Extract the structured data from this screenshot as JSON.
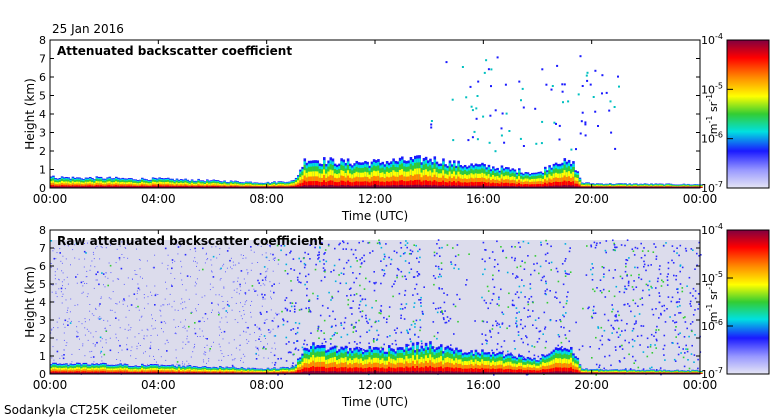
{
  "date": "25 Jan 2016",
  "footer": "Sodankyla CT25K ceilometer",
  "chart_data": [
    {
      "type": "heatmap",
      "title": "Attenuated backscatter coefficient",
      "xlabel": "Time (UTC)",
      "ylabel": "Height (km)",
      "xlim": [
        0,
        24
      ],
      "ylim": [
        0,
        8
      ],
      "xticks": [
        0,
        4,
        8,
        12,
        16,
        20,
        24
      ],
      "xtick_labels": [
        "00:00",
        "04:00",
        "08:00",
        "12:00",
        "16:00",
        "20:00",
        "00:00"
      ],
      "yticks": [
        0,
        1,
        2,
        3,
        4,
        5,
        6,
        7,
        8
      ],
      "ytick_labels": [
        "0",
        "1",
        "2",
        "3",
        "4",
        "5",
        "6",
        "7",
        "8"
      ],
      "layer_top_km": [
        [
          0,
          0.6
        ],
        [
          1,
          0.55
        ],
        [
          2,
          0.55
        ],
        [
          3,
          0.5
        ],
        [
          4,
          0.5
        ],
        [
          5,
          0.45
        ],
        [
          6,
          0.4
        ],
        [
          7,
          0.35
        ],
        [
          8,
          0.3
        ],
        [
          9,
          0.4
        ],
        [
          9.4,
          1.6
        ],
        [
          10,
          1.5
        ],
        [
          11,
          1.4
        ],
        [
          12,
          1.4
        ],
        [
          13,
          1.5
        ],
        [
          14,
          1.6
        ],
        [
          15,
          1.3
        ],
        [
          16,
          1.2
        ],
        [
          17,
          1.0
        ],
        [
          18,
          0.8
        ],
        [
          18.7,
          1.5
        ],
        [
          19.3,
          1.3
        ],
        [
          19.6,
          0.3
        ],
        [
          20,
          0.25
        ],
        [
          24,
          0.2
        ]
      ],
      "noise_region": "sparse",
      "colorbar": {
        "min_label": "10",
        "min_exp": "-7",
        "max_label": "10",
        "max_exp": "-4",
        "tick_labels": [
          "10",
          "10",
          "10",
          "10"
        ],
        "tick_exps": [
          "-4",
          "-5",
          "-6",
          "-7"
        ],
        "unit_main": "m",
        "unit_exp1": "-1",
        "unit_sr": "sr",
        "unit_exp2": "-1",
        "colors": [
          "#e6e6f5",
          "#9999ff",
          "#1a1aff",
          "#00e0e0",
          "#33cc33",
          "#ffff00",
          "#ff8800",
          "#ff0000",
          "#800040"
        ]
      }
    },
    {
      "type": "heatmap",
      "title": "Raw attenuated backscatter coefficient",
      "xlabel": "Time (UTC)",
      "ylabel": "Height (km)",
      "xlim": [
        0,
        24
      ],
      "ylim": [
        0,
        8
      ],
      "xticks": [
        0,
        4,
        8,
        12,
        16,
        20,
        24
      ],
      "xtick_labels": [
        "00:00",
        "04:00",
        "08:00",
        "12:00",
        "16:00",
        "20:00",
        "00:00"
      ],
      "yticks": [
        0,
        1,
        2,
        3,
        4,
        5,
        6,
        7,
        8
      ],
      "ytick_labels": [
        "0",
        "1",
        "2",
        "3",
        "4",
        "5",
        "6",
        "7",
        "8"
      ],
      "layer_top_km": [
        [
          0,
          0.6
        ],
        [
          1,
          0.55
        ],
        [
          2,
          0.55
        ],
        [
          3,
          0.5
        ],
        [
          4,
          0.5
        ],
        [
          5,
          0.45
        ],
        [
          6,
          0.4
        ],
        [
          7,
          0.35
        ],
        [
          8,
          0.3
        ],
        [
          9,
          0.4
        ],
        [
          9.4,
          1.6
        ],
        [
          10,
          1.5
        ],
        [
          11,
          1.4
        ],
        [
          12,
          1.4
        ],
        [
          13,
          1.5
        ],
        [
          14,
          1.6
        ],
        [
          15,
          1.3
        ],
        [
          16,
          1.2
        ],
        [
          17,
          1.0
        ],
        [
          18,
          0.8
        ],
        [
          18.7,
          1.5
        ],
        [
          19.3,
          1.3
        ],
        [
          19.6,
          0.3
        ],
        [
          20,
          0.25
        ],
        [
          24,
          0.2
        ]
      ],
      "noise_region": "dense",
      "colorbar": {
        "min_label": "10",
        "min_exp": "-7",
        "max_label": "10",
        "max_exp": "-4",
        "tick_labels": [
          "10",
          "10",
          "10",
          "10"
        ],
        "tick_exps": [
          "-4",
          "-5",
          "-6",
          "-7"
        ],
        "unit_main": "m",
        "unit_exp1": "-1",
        "unit_sr": "sr",
        "unit_exp2": "-1",
        "colors": [
          "#e6e6f5",
          "#9999ff",
          "#1a1aff",
          "#00e0e0",
          "#33cc33",
          "#ffff00",
          "#ff8800",
          "#ff0000",
          "#800040"
        ]
      }
    }
  ]
}
